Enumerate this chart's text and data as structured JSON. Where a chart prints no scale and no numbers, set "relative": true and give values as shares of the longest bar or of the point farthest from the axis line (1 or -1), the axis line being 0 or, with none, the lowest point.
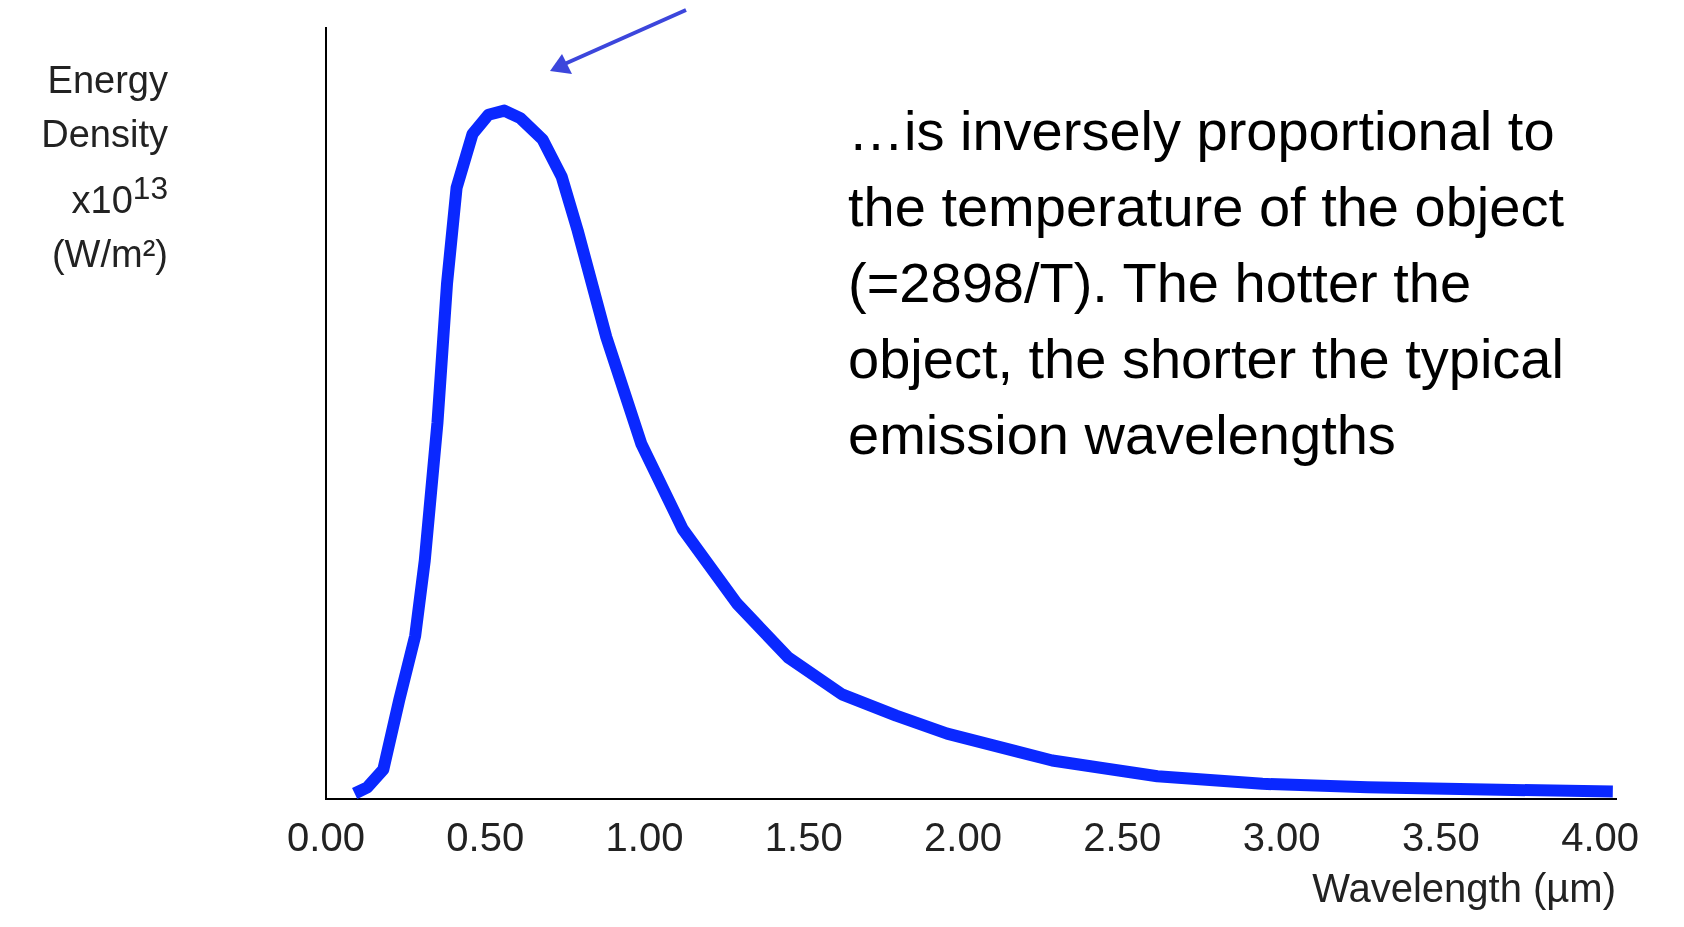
{
  "chart_data": {
    "type": "line",
    "relative": true,
    "xlabel": "Wavelength (µm)",
    "ylabel": "Energy Density x10$^{13}$ (W/m²)",
    "annotations": [
      "…is inversely proportional to the temperature of the object (=2898/T).   The hotter the object, the shorter the typical emission wavelengths"
    ],
    "x": [
      0.09,
      0.13,
      0.18,
      0.23,
      0.28,
      0.31,
      0.35,
      0.38,
      0.41,
      0.46,
      0.51,
      0.56,
      0.61,
      0.68,
      0.74,
      0.79,
      0.88,
      0.99,
      1.12,
      1.29,
      1.45,
      1.62,
      1.79,
      1.95,
      2.28,
      2.61,
      2.94,
      3.27,
      3.6,
      4.04
    ],
    "series": [
      {
        "color": "#0a28ff",
        "values": [
          0.008,
          0.017,
          0.043,
          0.144,
          0.237,
          0.346,
          0.547,
          0.749,
          0.888,
          0.966,
          0.994,
          1,
          0.989,
          0.958,
          0.904,
          0.826,
          0.671,
          0.516,
          0.392,
          0.284,
          0.206,
          0.152,
          0.121,
          0.095,
          0.056,
          0.033,
          0.022,
          0.017,
          0.014,
          0.011
        ]
      }
    ],
    "xlim": [
      0,
      4.05
    ],
    "xticks": [
      {
        "value": 0,
        "label": "0.00"
      },
      {
        "value": 0.5,
        "label": "0.50"
      },
      {
        "value": 1,
        "label": "1.00"
      },
      {
        "value": 1.5,
        "label": "1.50"
      },
      {
        "value": 2,
        "label": "2.00"
      },
      {
        "value": 2.5,
        "label": "2.50"
      },
      {
        "value": 3,
        "label": "3.00"
      },
      {
        "value": 3.5,
        "label": "3.50"
      },
      {
        "value": 4,
        "label": "4.00"
      }
    ],
    "tick_labels": "x",
    "grid": false,
    "legend": false,
    "marker": "none",
    "line_style": "solid"
  }
}
